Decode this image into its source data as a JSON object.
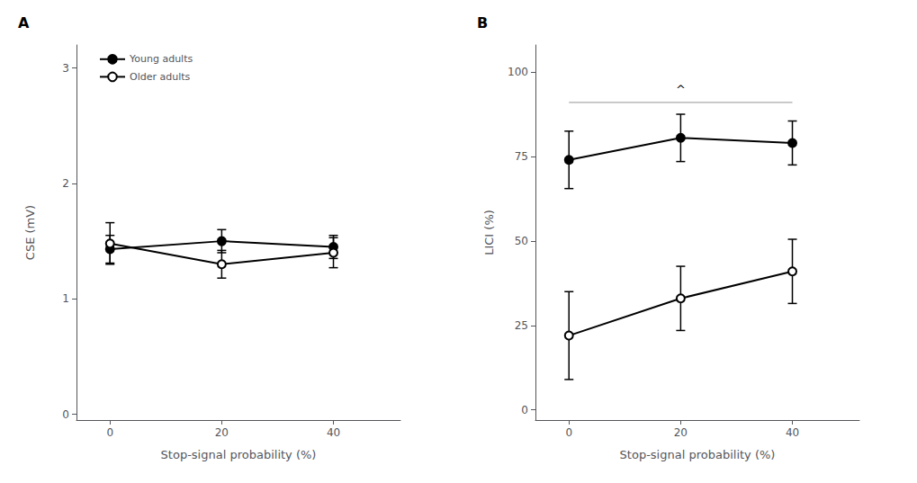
{
  "chart_data": [
    {
      "type": "line",
      "title": "A",
      "xlabel": "Stop-signal probability (%)",
      "ylabel": "CSE (mV)",
      "x": [
        0,
        20,
        40
      ],
      "xlim": [
        -6,
        52
      ],
      "xticks": [
        0,
        20,
        40
      ],
      "ylim": [
        -0.05,
        3.2
      ],
      "yticks": [
        0,
        1,
        2,
        3
      ],
      "grid": false,
      "legend": "upper left",
      "series": [
        {
          "name": "Young adults",
          "color": "#000000",
          "marker": "circle",
          "values": [
            1.43,
            1.5,
            1.45
          ],
          "errors": [
            0.12,
            0.1,
            0.1
          ]
        },
        {
          "name": "Older adults",
          "color": "#000000",
          "marker": "emptyCircle",
          "values": [
            1.48,
            1.3,
            1.4
          ],
          "errors": [
            0.18,
            0.12,
            0.13
          ]
        }
      ]
    },
    {
      "type": "line",
      "title": "B",
      "xlabel": "Stop-signal probability (%)",
      "ylabel": "LICI (%)",
      "x": [
        0,
        20,
        40
      ],
      "xlim": [
        -6,
        52
      ],
      "xticks": [
        0,
        20,
        40
      ],
      "ylim": [
        -3,
        108
      ],
      "yticks": [
        0,
        25,
        50,
        75,
        100
      ],
      "grid": false,
      "series": [
        {
          "color": "#000000",
          "marker": "circle",
          "values": [
            74.0,
            80.5,
            79.0
          ],
          "errors": [
            8.5,
            7.0,
            6.5
          ]
        },
        {
          "color": "#000000",
          "marker": "emptyCircle",
          "values": [
            22.0,
            33.0,
            41.0
          ],
          "errors": [
            13.0,
            9.5,
            9.5
          ]
        }
      ],
      "bracket": {
        "x_start": 0,
        "x_end": 40,
        "y": 91,
        "color": "#aaaaaa"
      },
      "annotations": [
        {
          "text": "^",
          "x": 20,
          "y": 93
        }
      ]
    }
  ]
}
